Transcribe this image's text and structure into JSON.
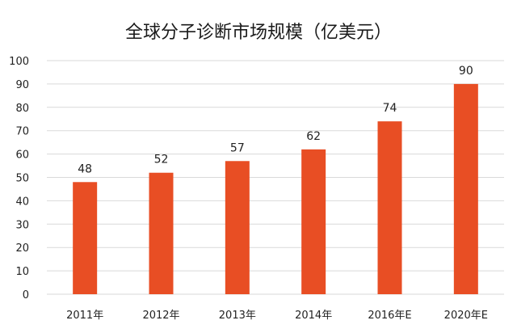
{
  "chart_data": {
    "type": "bar",
    "title": "全球分子诊断市场规模（亿美元）",
    "categories": [
      "2011年",
      "2012年",
      "2013年",
      "2014年",
      "2016年E",
      "2020年E"
    ],
    "values": [
      48,
      52,
      57,
      62,
      74,
      90
    ],
    "ylim": [
      0,
      100
    ],
    "yticks": [
      0,
      10,
      20,
      30,
      40,
      50,
      60,
      70,
      80,
      90,
      100
    ],
    "grid": true,
    "legend": "none",
    "bar_color": "#e84e24",
    "grid_color": "#d9d9d9"
  }
}
